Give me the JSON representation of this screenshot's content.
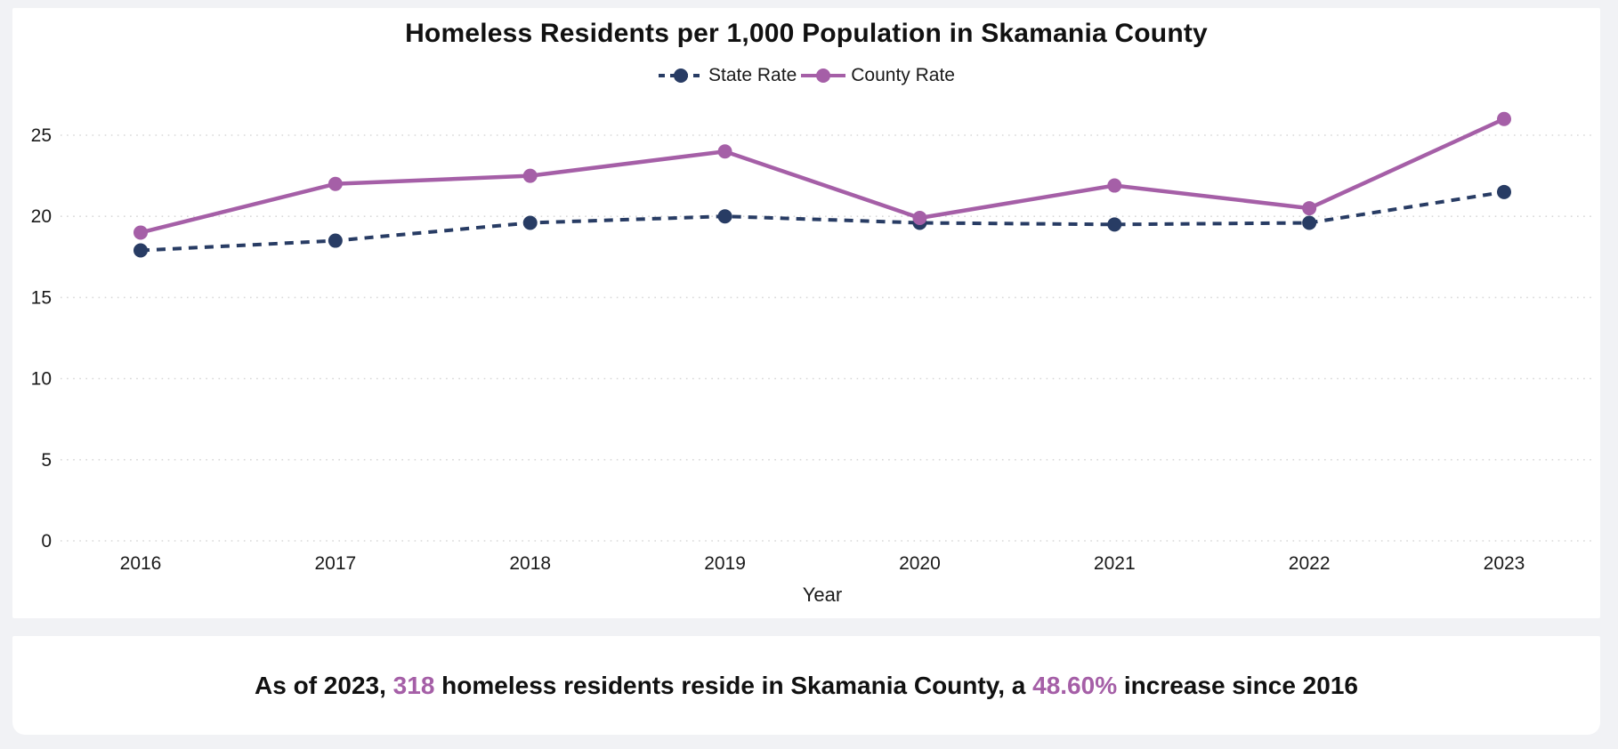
{
  "page": {
    "background_color": "#f1f2f5",
    "card_color": "#ffffff"
  },
  "chart_data": {
    "type": "line",
    "title": "Homeless Residents per 1,000 Population in Skamania County",
    "xlabel": "Year",
    "ylabel": "",
    "x": [
      2016,
      2017,
      2018,
      2019,
      2020,
      2021,
      2022,
      2023
    ],
    "y_ticks": [
      0,
      5,
      10,
      15,
      20,
      25
    ],
    "ylim": [
      0,
      27.5
    ],
    "grid": "horizontal dotted lines",
    "legend_position": "top-center",
    "series": [
      {
        "name": "State Rate",
        "color": "#283c64",
        "line_style": "dashed",
        "marker": "circle",
        "values": [
          17.9,
          18.5,
          19.6,
          20.0,
          19.6,
          19.5,
          19.6,
          21.5
        ]
      },
      {
        "name": "County Rate",
        "color": "#a55fa7",
        "line_style": "solid",
        "marker": "circle",
        "values": [
          19.0,
          22.0,
          22.5,
          24.0,
          19.9,
          21.9,
          20.5,
          26.0
        ]
      }
    ]
  },
  "annotation": {
    "prefix": "As of 2023, ",
    "highlight1": "318",
    "middle": " homeless residents reside in Skamania County, a ",
    "highlight2": "48.60%",
    "suffix": " increase since 2016",
    "highlight_color": "#a55fa7",
    "text_color": "#111111"
  }
}
